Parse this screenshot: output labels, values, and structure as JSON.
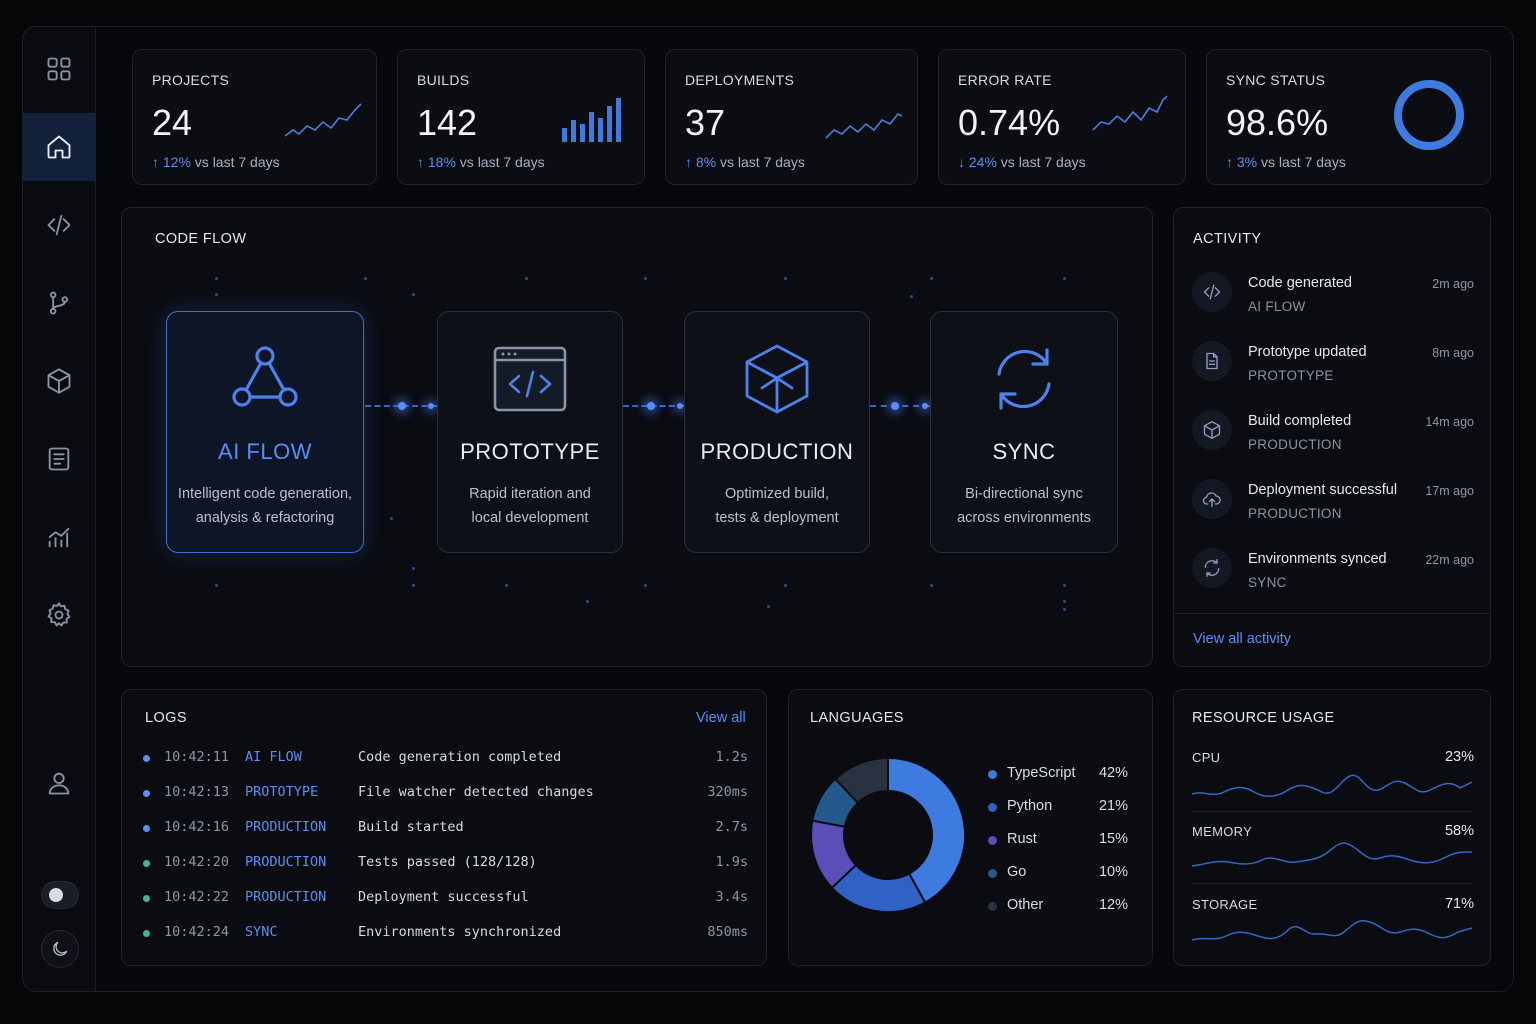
{
  "stats": [
    {
      "label": "PROJECTS",
      "value": "24",
      "arrow": "↑",
      "pct": "12%",
      "suffix": " vs last 7 days"
    },
    {
      "label": "BUILDS",
      "value": "142",
      "arrow": "↑",
      "pct": "18%",
      "suffix": " vs last 7 days"
    },
    {
      "label": "DEPLOYMENTS",
      "value": "37",
      "arrow": "↑",
      "pct": "8%",
      "suffix": " vs last 7 days"
    },
    {
      "label": "ERROR RATE",
      "value": "0.74%",
      "arrow": "↓",
      "pct": "24%",
      "suffix": " vs last 7 days"
    },
    {
      "label": "SYNC STATUS",
      "value": "98.6%",
      "arrow": "↑",
      "pct": "3%",
      "suffix": " vs last 7 days"
    }
  ],
  "sync_ring_level": 0.986,
  "code_flow": {
    "title": "CODE FLOW",
    "stages": [
      {
        "title": "AI FLOW",
        "line1": "Intelligent code generation,",
        "line2": "analysis & refactoring",
        "icon": "network-triangle-icon"
      },
      {
        "title": "PROTOTYPE",
        "line1": "Rapid iteration and",
        "line2": "local development",
        "icon": "code-window-icon"
      },
      {
        "title": "PRODUCTION",
        "line1": "Optimized build,",
        "line2": "tests & deployment",
        "icon": "cube-icon"
      },
      {
        "title": "SYNC",
        "line1": "Bi-directional sync",
        "line2": "across environments",
        "icon": "sync-icon"
      }
    ]
  },
  "activity": {
    "title": "ACTIVITY",
    "items": [
      {
        "title": "Code generated",
        "sub": "AI FLOW",
        "time": "2m ago",
        "icon": "code-icon"
      },
      {
        "title": "Prototype updated",
        "sub": "PROTOTYPE",
        "time": "8m ago",
        "icon": "document-icon"
      },
      {
        "title": "Build completed",
        "sub": "PRODUCTION",
        "time": "14m ago",
        "icon": "cube-icon"
      },
      {
        "title": "Deployment successful",
        "sub": "PRODUCTION",
        "time": "17m ago",
        "icon": "cloud-upload-icon"
      },
      {
        "title": "Environments synced",
        "sub": "SYNC",
        "time": "22m ago",
        "icon": "sync-icon"
      }
    ],
    "view_all": "View all activity"
  },
  "logs": {
    "title": "LOGS",
    "view_all": "View all",
    "rows": [
      {
        "time": "10:42:11",
        "tag": "AI FLOW",
        "msg": "Code generation completed",
        "dur": "1.2s",
        "status": "blue"
      },
      {
        "time": "10:42:13",
        "tag": "PROTOTYPE",
        "msg": "File watcher detected changes",
        "dur": "320ms",
        "status": "blue"
      },
      {
        "time": "10:42:16",
        "tag": "PRODUCTION",
        "msg": "Build started",
        "dur": "2.7s",
        "status": "blue"
      },
      {
        "time": "10:42:20",
        "tag": "PRODUCTION",
        "msg": "Tests passed (128/128)",
        "dur": "1.9s",
        "status": "green"
      },
      {
        "time": "10:42:22",
        "tag": "PRODUCTION",
        "msg": "Deployment successful",
        "dur": "3.4s",
        "status": "green"
      },
      {
        "time": "10:42:24",
        "tag": "SYNC",
        "msg": "Environments synchronized",
        "dur": "850ms",
        "status": "green"
      }
    ]
  },
  "languages": {
    "title": "LANGUAGES",
    "items": [
      {
        "name": "TypeScript",
        "pct": "42%",
        "value": 42,
        "color": "#3d7be0"
      },
      {
        "name": "Python",
        "pct": "21%",
        "value": 21,
        "color": "#2f62c4"
      },
      {
        "name": "Rust",
        "pct": "15%",
        "value": 15,
        "color": "#5a4fb8"
      },
      {
        "name": "Go",
        "pct": "10%",
        "value": 10,
        "color": "#24598c"
      },
      {
        "name": "Other",
        "pct": "12%",
        "value": 12,
        "color": "#2a3242"
      }
    ]
  },
  "resources": {
    "title": "RESOURCE USAGE",
    "items": [
      {
        "label": "CPU",
        "pct": "23%"
      },
      {
        "label": "MEMORY",
        "pct": "58%"
      },
      {
        "label": "STORAGE",
        "pct": "71%"
      }
    ]
  },
  "colors": {
    "accent": "#5b8ef0",
    "success": "#3fb98a"
  }
}
